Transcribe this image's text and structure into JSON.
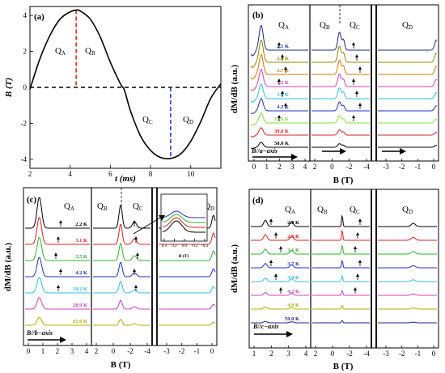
{
  "colors": {
    "axis": "#000000",
    "red_dashed": "#e8232a",
    "blue_dashed": "#2a3bd6"
  },
  "panel_a": {
    "label": "(a)",
    "xlabel": "t (ms)",
    "ylabel": "B (T)",
    "xticks": [
      "2",
      "4",
      "6",
      "8",
      "10"
    ],
    "yticks": [
      "4",
      "2",
      "0",
      "-2",
      "-4"
    ],
    "quadrants": [
      "Q",
      "A",
      "Q",
      "B",
      "Q",
      "C",
      "Q",
      "D"
    ]
  },
  "panel_b": {
    "label": "(b)",
    "ylabel": "dM/dB (a.u.)",
    "xlabel": "B (T)",
    "quadrants": [
      "Q",
      "A",
      "Q",
      "B",
      "Q",
      "C",
      "Q",
      "D"
    ],
    "xticks_a": [
      "0",
      "1",
      "2",
      "3",
      "4"
    ],
    "xticks_bc": [
      "2",
      "0",
      "-2",
      "-4"
    ],
    "xticks_d": [
      "-3",
      "-2",
      "-1",
      "0"
    ],
    "field_dir": "B//a−axis",
    "temps": [
      "2.1 K",
      "2.4 K",
      "2.7 K",
      "3.2 K",
      "3.6 K",
      "4.2 K",
      "13.4 K",
      "39.0 K",
      "50.0 K"
    ]
  },
  "panel_c": {
    "label": "(c)",
    "ylabel": "dM/dB (a.u.)",
    "xlabel": "B (T)",
    "quadrants": [
      "Q",
      "A",
      "Q",
      "B",
      "Q",
      "C",
      "Q",
      "D"
    ],
    "xticks_a": [
      "0",
      "1",
      "2",
      "3",
      "4"
    ],
    "xticks_bc": [
      "2",
      "0",
      "-2",
      "-4"
    ],
    "xticks_d": [
      "-3",
      "-2",
      "-1",
      "0"
    ],
    "field_dir": "B//b−axis",
    "temps": [
      "2.2 K",
      "3.1 K",
      "3.5 K",
      "4.2 K",
      "18.2 K",
      "28.9 K",
      "65.0 K"
    ],
    "inset_xticks": [
      "0.4",
      "0.2",
      "0.0",
      "-0.2",
      "-0.4"
    ],
    "inset_xlabel": "B (T)"
  },
  "panel_d": {
    "label": "(d)",
    "ylabel": "dM/dB (a.u.)",
    "xlabel": "B (T)",
    "quadrants": [
      "Q",
      "A",
      "Q",
      "B",
      "Q",
      "C",
      "Q",
      "D"
    ],
    "xticks_a": [
      "1",
      "2",
      "3",
      "4"
    ],
    "xticks_bc": [
      "2",
      "0",
      "-2",
      "-4"
    ],
    "xticks_d": [
      "-3",
      "-2",
      "-1",
      "0"
    ],
    "field_dir": "B//c−axis",
    "temps": [
      "2.0 K",
      "2.3 K",
      "3.1 K",
      "3.7 K",
      "3.9 K",
      "4.2 K",
      "4.9 K",
      "59.0 K"
    ]
  },
  "chart_data": [
    {
      "type": "line",
      "panel": "(a)",
      "xlabel": "t (ms)",
      "ylabel": "B (T)",
      "xlim": [
        2,
        11.5
      ],
      "ylim": [
        -4.5,
        4.5
      ],
      "series": [
        {
          "x": [
            2,
            2.5,
            3,
            3.5,
            4,
            4.3,
            4.5,
            5,
            5.5,
            6,
            6.5,
            6.7,
            7,
            7.5,
            8,
            8.5,
            9,
            9.5,
            10,
            10.5,
            11,
            11.5
          ],
          "y": [
            -0.1,
            1.6,
            2.9,
            3.8,
            4.2,
            4.3,
            4.25,
            3.8,
            2.8,
            1.4,
            0.2,
            -0.15,
            -1.3,
            -2.7,
            -3.5,
            -3.9,
            -3.95,
            -3.7,
            -3.0,
            -1.9,
            -0.6,
            0.2
          ]
        }
      ],
      "markers": {
        "Q_B_start_t": 4.3,
        "Q_D_start_t": 9.0
      }
    },
    {
      "type": "line",
      "panel": "(b)",
      "xlabel": "B (T)",
      "ylabel": "dM/dB (a.u.)",
      "series_names": [
        "2.1 K",
        "2.4 K",
        "2.7 K",
        "3.2 K",
        "3.6 K",
        "4.2 K",
        "13.4 K",
        "39.0 K",
        "50.0 K"
      ],
      "series_colors": [
        "#1a2a8a",
        "#8a8a00",
        "#e07000",
        "#d040c0",
        "#30c0e0",
        "#2030d0",
        "#80e040",
        "#e02020",
        "#000000"
      ]
    },
    {
      "type": "line",
      "panel": "(c)",
      "xlabel": "B (T)",
      "ylabel": "dM/dB (a.u.)",
      "series_names": [
        "2.2 K",
        "3.1 K",
        "3.5 K",
        "4.2 K",
        "18.2 K",
        "28.9 K",
        "65.0 K"
      ],
      "series_colors": [
        "#000000",
        "#e02020",
        "#30b030",
        "#2030d0",
        "#30c0e0",
        "#d040c0",
        "#b0b000"
      ]
    },
    {
      "type": "line",
      "panel": "(d)",
      "xlabel": "B (T)",
      "ylabel": "dM/dB (a.u.)",
      "series_names": [
        "2.0 K",
        "2.3 K",
        "3.1 K",
        "3.7 K",
        "3.9 K",
        "4.2 K",
        "4.9 K",
        "59.0 K"
      ],
      "series_colors": [
        "#000000",
        "#e02020",
        "#30b030",
        "#2030d0",
        "#30c0e0",
        "#d040c0",
        "#b0b000",
        "#1a2a8a"
      ]
    }
  ]
}
